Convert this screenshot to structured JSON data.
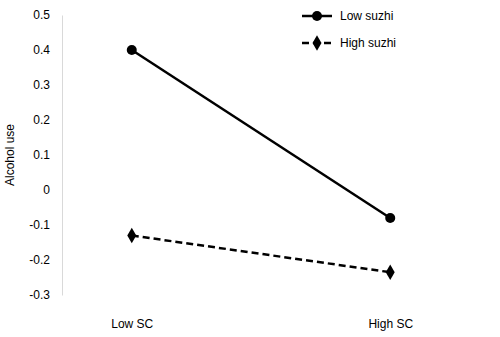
{
  "chart_data": {
    "type": "line",
    "y_label": "Alcohol use",
    "categories": [
      "Low SC",
      "High SC"
    ],
    "series": [
      {
        "name": "Low suzhi",
        "color": "#000000",
        "marker": "circle",
        "line_style": "solid",
        "values": [
          0.4,
          -0.08
        ]
      },
      {
        "name": "High suzhi",
        "color": "#000000",
        "marker": "diamond",
        "line_style": "dashed",
        "values": [
          -0.13,
          -0.235
        ]
      }
    ],
    "ylim": [
      -0.3,
      0.5
    ],
    "yticks": [
      -0.3,
      -0.2,
      -0.1,
      0,
      0.1,
      0.2,
      0.3,
      0.4,
      0.5
    ],
    "legend": "top-right"
  }
}
